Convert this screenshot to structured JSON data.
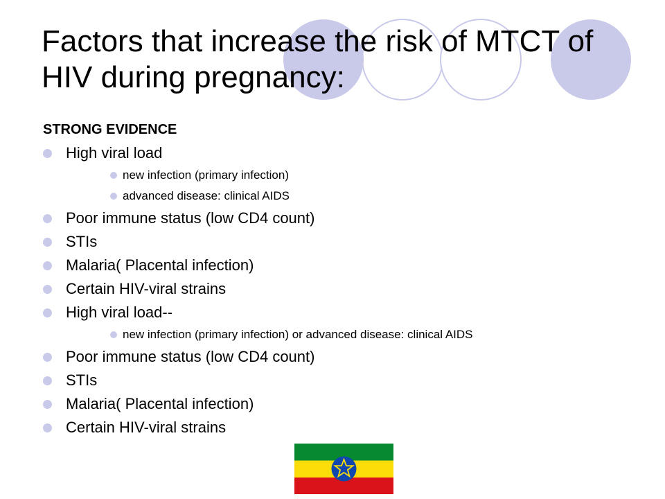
{
  "slide": {
    "title": "Factors that increase the risk of MTCT of HIV during pregnancy:",
    "heading": "STRONG EVIDENCE",
    "items": [
      {
        "label": "High viral load",
        "subitems": [
          "new infection (primary infection)",
          "advanced disease: clinical AIDS"
        ]
      },
      {
        "label": "Poor immune status (low CD4 count)",
        "subitems": []
      },
      {
        "label": "STIs",
        "subitems": []
      },
      {
        "label": "Malaria( Placental infection)",
        "subitems": []
      },
      {
        "label": "Certain HIV-viral strains",
        "subitems": []
      },
      {
        "label": "High viral load--",
        "subitems": [
          "new infection (primary infection) or advanced disease: clinical AIDS"
        ]
      },
      {
        "label": "Poor immune status (low CD4 count)",
        "subitems": []
      },
      {
        "label": "STIs",
        "subitems": []
      },
      {
        "label": "Malaria( Placental infection)",
        "subitems": []
      },
      {
        "label": "Certain HIV-viral strains",
        "subitems": []
      }
    ]
  },
  "colors": {
    "bullet": "#c9c9ea",
    "circle_fill": "#c9c9ea",
    "circle_stroke": "#c9c9ea",
    "flag_green": "#078930",
    "flag_yellow": "#fcdd09",
    "flag_red": "#da121a",
    "emblem_blue": "#0f47af",
    "emblem_star": "#fcdd09"
  },
  "flag": {
    "icon": "ethiopian-flag-icon"
  }
}
